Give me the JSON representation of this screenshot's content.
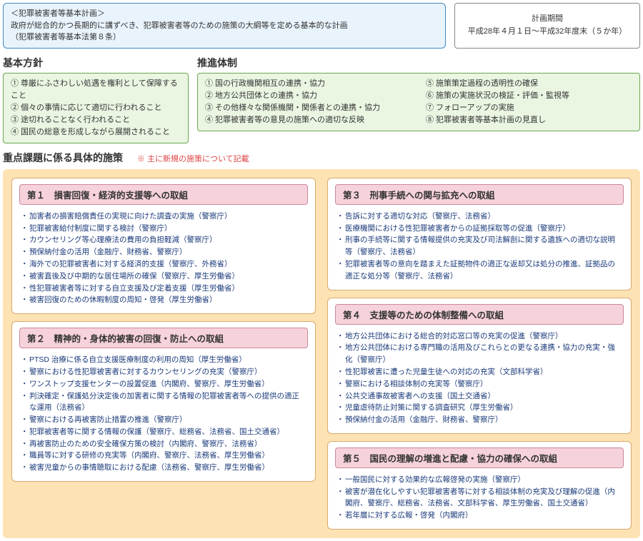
{
  "header": {
    "blue_title": "＜犯罪被害者等基本計画＞",
    "blue_line1": "政府が総合的かつ長期的に講ずべき、犯罪被害者等のための施策の大綱等を定める基本的な計画",
    "blue_line2": "（犯罪被害者等基本法第８条）",
    "period_title": "計画期間",
    "period_text": "平成28年４月１日～平成32年度末（５か年）"
  },
  "basic_policy": {
    "heading": "基本方針",
    "items": [
      "① 尊厳にふさわしい処遇を権利として保障すること",
      "② 個々の事情に応じて適切に行われること",
      "③ 途切れることなく行われること",
      "④ 国民の総意を形成しながら展開されること"
    ]
  },
  "promotion": {
    "heading": "推進体制",
    "left": [
      "① 国の行政機関相互の連携・協力",
      "② 地方公共団体との連携・協力",
      "③ その他様々な関係機関・関係者との連携・協力",
      "④ 犯罪被害者等の意見の施策への適切な反映"
    ],
    "right": [
      "⑤ 施策策定過程の透明性の確保",
      "⑥ 施策の実施状況の検証・評価・監視等",
      "⑦ フォローアップの実施",
      "⑧ 犯罪被害者等基本計画の見直し"
    ]
  },
  "measures_heading": "重点課題に係る具体的施策",
  "measures_note": "※ 主に新規の施策について記載",
  "card1": {
    "title": "第１　損害回復・経済的支援等への取組",
    "items": [
      "加害者の損害賠償責任の実現に向けた調査の実施（警察庁）",
      "犯罪被害給付制度に関する検討（警察庁）",
      "カウンセリング等心理療法の費用の負担軽減（警察庁）",
      "預保納付金の活用（金融庁、財務省、警察庁）",
      "海外での犯罪被害者に対する経済的支援（警察庁、外務省）",
      "被害直後及び中期的な居住場所の確保（警察庁、厚生労働省）",
      "性犯罪被害者等に対する自立支援及び定着支援（厚生労働省）",
      "被害回復のための休暇制度の周知・啓発（厚生労働省）"
    ]
  },
  "card2": {
    "title": "第２　精神的・身体的被害の回復・防止への取組",
    "items": [
      "PTSD 治療に係る自立支援医療制度の利用の周知（厚生労働省）",
      "警察における性犯罪被害者に対するカウンセリングの充実（警察庁）",
      "ワンストップ支援センターの設置促進（内閣府、警察庁、厚生労働省）",
      "判決確定・保護処分決定後の加害者に関する情報の犯罪被害者等への提供の適正な運用（法務省）",
      "警察における再被害防止措置の推進（警察庁）",
      "犯罪被害者等に関する情報の保護（警察庁、総務省、法務省、国土交通省）",
      "再被害防止のための安全確保方策の検討（内閣府、警察庁、法務省）",
      "職員等に対する研修の充実等（内閣府、警察庁、法務省、厚生労働省）",
      "被害児童からの事情聴取における配慮（法務省、警察庁、厚生労働省）"
    ]
  },
  "card3": {
    "title": "第３　刑事手続への関与拡充への取組",
    "items": [
      "告訴に対する適切な対応（警察庁、法務省）",
      "医療機関における性犯罪被害者からの証拠採取等の促進（警察庁）",
      "刑事の手続等に関する情報提供の充実及び司法解剖に関する遺族への適切な説明等（警察庁、法務省）",
      "犯罪被害者等の意向を踏まえた証拠物件の適正な返却又は処分の推進、証拠品の適正な処分等（警察庁、法務省）"
    ]
  },
  "card4": {
    "title": "第４　支援等のための体制整備への取組",
    "items": [
      "地方公共団体における総合的対応窓口等の充実の促進（警察庁）",
      "地方公共団体における専門職の活用及びこれらとの更なる連携・協力の充実・強化（警察庁）",
      "性犯罪被害に遭った児童生徒への対応の充実（文部科学省）",
      "警察における相談体制の充実等（警察庁）",
      "公共交通事故被害者への支援（国土交通省）",
      "児童虐待防止対策に関する調査研究（厚生労働省）",
      "預保納付金の活用（金融庁、財務省、警察庁）"
    ]
  },
  "card5": {
    "title": "第５　国民の理解の増進と配慮・協力の確保への取組",
    "items": [
      "一般国民に対する効果的な広報啓発の実施（警察庁）",
      "被害が潜在化しやすい犯罪被害者等に対する相談体制の充実及び理解の促進（内閣府、警察庁、総務省、法務省、文部科学省、厚生労働省、国土交通省）",
      "若年層に対する広報・啓発（内閣府）"
    ]
  }
}
